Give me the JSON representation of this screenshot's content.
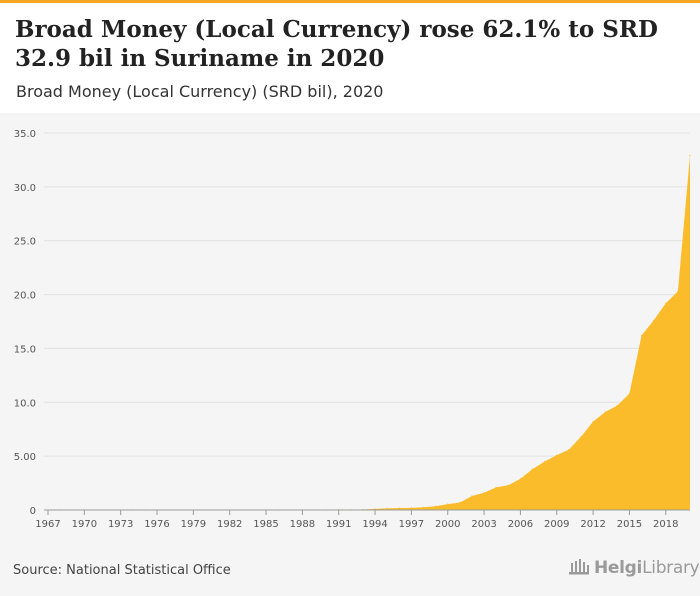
{
  "header": {
    "title": "Broad Money (Local Currency) rose 62.1% to SRD 32.9 bil in Suriname in 2020",
    "subtitle": "Broad Money (Local Currency) (SRD bil), 2020"
  },
  "footer": {
    "source": "Source: National Statistical Office",
    "logo_brand": "Helgi",
    "logo_suffix": "Library"
  },
  "colors": {
    "area": "#fbbc2c",
    "grid": "#e2e2e2",
    "axis": "#9a9a9a",
    "background": "#f5f5f5",
    "accent_bar": "#f5a623"
  },
  "icons": {
    "logo": "building-columns-icon"
  },
  "chart_data": {
    "type": "area",
    "title": "Broad Money (Local Currency) (SRD bil), 2020",
    "xlabel": "",
    "ylabel": "",
    "ylim": [
      0,
      35
    ],
    "xlim": [
      1967,
      2020
    ],
    "grid": true,
    "legend": "none",
    "y_ticks": [
      "0",
      "5.00",
      "10.0",
      "15.0",
      "20.0",
      "25.0",
      "30.0",
      "35.0"
    ],
    "x_ticks": [
      "1967",
      "1970",
      "1973",
      "1976",
      "1979",
      "1982",
      "1985",
      "1988",
      "1991",
      "1994",
      "1997",
      "2000",
      "2003",
      "2006",
      "2009",
      "2012",
      "2015",
      "2018"
    ],
    "series": [
      {
        "values": [
          {
            "x": 1967,
            "y": 0.001
          },
          {
            "x": 1968,
            "y": 0.001
          },
          {
            "x": 1969,
            "y": 0.001
          },
          {
            "x": 1970,
            "y": 0.002
          },
          {
            "x": 1971,
            "y": 0.002
          },
          {
            "x": 1972,
            "y": 0.002
          },
          {
            "x": 1973,
            "y": 0.002
          },
          {
            "x": 1974,
            "y": 0.003
          },
          {
            "x": 1975,
            "y": 0.003
          },
          {
            "x": 1976,
            "y": 0.004
          },
          {
            "x": 1977,
            "y": 0.004
          },
          {
            "x": 1978,
            "y": 0.005
          },
          {
            "x": 1979,
            "y": 0.005
          },
          {
            "x": 1980,
            "y": 0.006
          },
          {
            "x": 1981,
            "y": 0.006
          },
          {
            "x": 1982,
            "y": 0.007
          },
          {
            "x": 1983,
            "y": 0.008
          },
          {
            "x": 1984,
            "y": 0.009
          },
          {
            "x": 1985,
            "y": 0.01
          },
          {
            "x": 1986,
            "y": 0.012
          },
          {
            "x": 1987,
            "y": 0.013
          },
          {
            "x": 1988,
            "y": 0.015
          },
          {
            "x": 1989,
            "y": 0.016
          },
          {
            "x": 1990,
            "y": 0.018
          },
          {
            "x": 1991,
            "y": 0.02
          },
          {
            "x": 1992,
            "y": 0.03
          },
          {
            "x": 1993,
            "y": 0.05
          },
          {
            "x": 1994,
            "y": 0.1
          },
          {
            "x": 1995,
            "y": 0.15
          },
          {
            "x": 1996,
            "y": 0.18
          },
          {
            "x": 1997,
            "y": 0.2
          },
          {
            "x": 1998,
            "y": 0.25
          },
          {
            "x": 1999,
            "y": 0.35
          },
          {
            "x": 2000,
            "y": 0.55
          },
          {
            "x": 2001,
            "y": 0.7
          },
          {
            "x": 2002,
            "y": 1.3
          },
          {
            "x": 2003,
            "y": 1.6
          },
          {
            "x": 2004,
            "y": 2.1
          },
          {
            "x": 2005,
            "y": 2.3
          },
          {
            "x": 2006,
            "y": 2.9
          },
          {
            "x": 2007,
            "y": 3.8
          },
          {
            "x": 2008,
            "y": 4.5
          },
          {
            "x": 2009,
            "y": 5.1
          },
          {
            "x": 2010,
            "y": 5.6
          },
          {
            "x": 2011,
            "y": 6.8
          },
          {
            "x": 2012,
            "y": 8.2
          },
          {
            "x": 2013,
            "y": 9.1
          },
          {
            "x": 2014,
            "y": 9.7
          },
          {
            "x": 2015,
            "y": 10.8
          },
          {
            "x": 2016,
            "y": 16.2
          },
          {
            "x": 2017,
            "y": 17.6
          },
          {
            "x": 2018,
            "y": 19.2
          },
          {
            "x": 2019,
            "y": 20.3
          },
          {
            "x": 2020,
            "y": 32.9
          }
        ]
      }
    ]
  }
}
